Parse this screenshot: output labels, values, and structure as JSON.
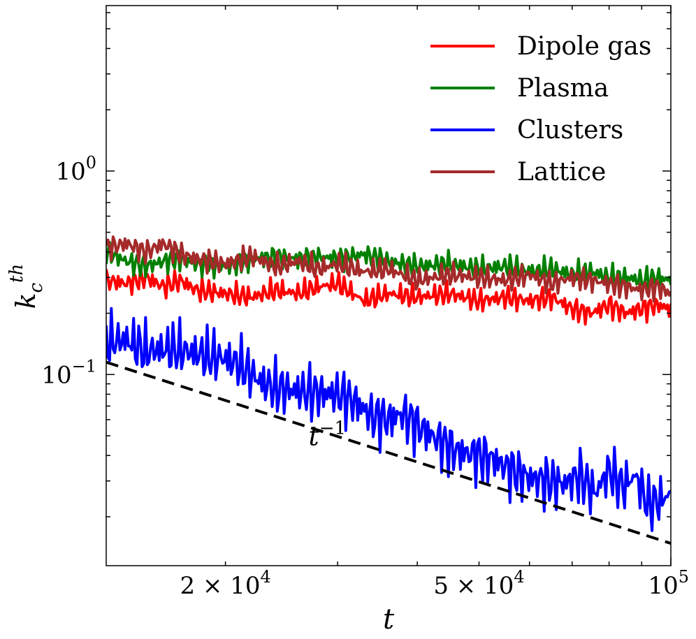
{
  "chart_data": {
    "type": "line",
    "scale": {
      "x": "log",
      "y": "log"
    },
    "xlim": [
      13000,
      100000
    ],
    "ylim": [
      0.0115,
      6.5
    ],
    "xlabel": "t",
    "ylabel": "k_c^th",
    "x_ticks": [
      {
        "value": 20000,
        "mantissa": "2",
        "sep": " × ",
        "base": "10",
        "exp": "4"
      },
      {
        "value": 50000,
        "mantissa": "5",
        "sep": " × ",
        "base": "10",
        "exp": "4"
      },
      {
        "value": 100000,
        "mantissa": "",
        "sep": "",
        "base": "10",
        "exp": "5"
      }
    ],
    "y_ticks": [
      {
        "value": 1,
        "base": "10",
        "exp": "0"
      },
      {
        "value": 0.1,
        "base": "10",
        "exp": "−1"
      }
    ],
    "legend": {
      "position": "top-right"
    },
    "series": [
      {
        "name": "Dipole gas",
        "color": "#ff0000",
        "x": [
          13000,
          14000,
          15000,
          16000,
          17000,
          18000,
          20000,
          22000,
          24000,
          26000,
          28000,
          30000,
          33000,
          36000,
          40000,
          45000,
          50000,
          55000,
          60000,
          65000,
          70000,
          75000,
          80000,
          85000,
          90000,
          95000,
          100000
        ],
        "y": [
          0.29,
          0.28,
          0.3,
          0.27,
          0.29,
          0.26,
          0.25,
          0.24,
          0.26,
          0.25,
          0.27,
          0.28,
          0.23,
          0.25,
          0.24,
          0.25,
          0.23,
          0.24,
          0.23,
          0.24,
          0.21,
          0.2,
          0.22,
          0.2,
          0.21,
          0.22,
          0.21
        ]
      },
      {
        "name": "Plasma",
        "color": "#008000",
        "x": [
          13000,
          14000,
          15000,
          16000,
          17000,
          18000,
          20000,
          22000,
          24000,
          26000,
          28000,
          30000,
          33000,
          36000,
          40000,
          45000,
          50000,
          55000,
          60000,
          65000,
          70000,
          75000,
          80000,
          85000,
          90000,
          95000,
          100000
        ],
        "y": [
          0.4,
          0.36,
          0.34,
          0.36,
          0.37,
          0.35,
          0.34,
          0.37,
          0.38,
          0.37,
          0.38,
          0.37,
          0.39,
          0.36,
          0.34,
          0.35,
          0.33,
          0.34,
          0.32,
          0.33,
          0.31,
          0.32,
          0.3,
          0.3,
          0.29,
          0.3,
          0.29
        ]
      },
      {
        "name": "Clusters",
        "color": "#0000ff",
        "x": [
          13000,
          14000,
          15000,
          16000,
          17000,
          18000,
          19000,
          20000,
          21000,
          22000,
          23000,
          24000,
          26000,
          28000,
          30000,
          32000,
          34000,
          36000,
          38000,
          40000,
          43000,
          46000,
          50000,
          53000,
          56000,
          60000,
          64000,
          68000,
          72000,
          76000,
          80000,
          84000,
          88000,
          92000,
          96000,
          100000
        ],
        "y": [
          0.145,
          0.148,
          0.13,
          0.133,
          0.132,
          0.127,
          0.122,
          0.12,
          0.112,
          0.1,
          0.09,
          0.086,
          0.083,
          0.081,
          0.08,
          0.073,
          0.062,
          0.06,
          0.064,
          0.056,
          0.048,
          0.042,
          0.04,
          0.038,
          0.034,
          0.031,
          0.03,
          0.029,
          0.032,
          0.026,
          0.034,
          0.028,
          0.032,
          0.023,
          0.024,
          0.026
        ]
      },
      {
        "name": "Lattice",
        "color": "#a52a2a",
        "x": [
          13000,
          14000,
          15000,
          16000,
          17000,
          18000,
          20000,
          22000,
          24000,
          26000,
          28000,
          30000,
          33000,
          36000,
          40000,
          45000,
          50000,
          55000,
          60000,
          65000,
          70000,
          75000,
          80000,
          85000,
          90000,
          95000,
          100000
        ],
        "y": [
          0.42,
          0.44,
          0.4,
          0.44,
          0.39,
          0.37,
          0.35,
          0.38,
          0.34,
          0.36,
          0.33,
          0.35,
          0.32,
          0.33,
          0.29,
          0.31,
          0.3,
          0.29,
          0.31,
          0.28,
          0.3,
          0.29,
          0.28,
          0.27,
          0.26,
          0.27,
          0.25
        ]
      },
      {
        "name": "t^-1 reference",
        "color": "#000000",
        "dashed": true,
        "in_legend": false,
        "x": [
          13000,
          100000
        ],
        "y": [
          0.115,
          0.0148
        ]
      }
    ],
    "annotations": [
      {
        "text": "t",
        "sup": "−1",
        "x": 27000,
        "y": 0.045
      }
    ]
  }
}
